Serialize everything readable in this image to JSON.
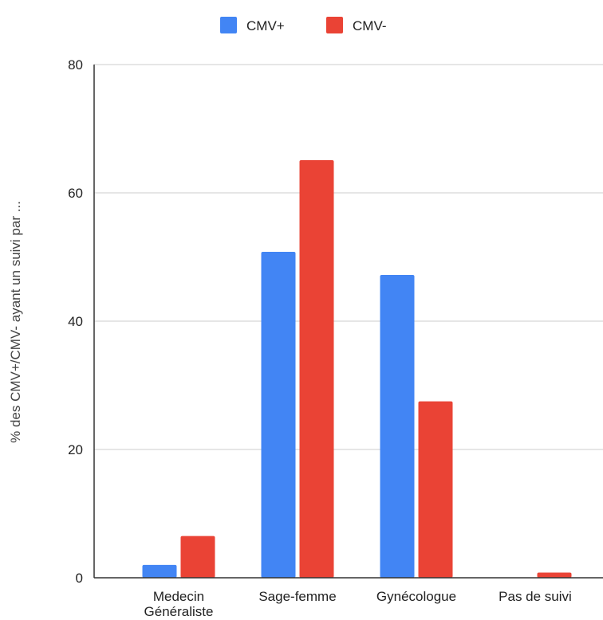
{
  "chart_data": {
    "type": "bar",
    "title": "",
    "xlabel": "",
    "ylabel": "% des CMV+/CMV- ayant un suivi par ...",
    "ylim": [
      0,
      80
    ],
    "yticks": [
      0,
      20,
      40,
      60,
      80
    ],
    "grid": true,
    "legend_position": "top-center",
    "categories": [
      [
        "Medecin",
        "Généraliste"
      ],
      [
        "Sage-femme"
      ],
      [
        "Gynécologue"
      ],
      [
        "Pas de suivi"
      ]
    ],
    "series": [
      {
        "name": "CMV+",
        "color": "#4285f4",
        "values": [
          2.0,
          50.8,
          47.2,
          0
        ]
      },
      {
        "name": "CMV-",
        "color": "#ea4335",
        "values": [
          6.5,
          65.1,
          27.5,
          0.8
        ]
      }
    ]
  },
  "colors": {
    "gridline": "#cccccc",
    "axis": "#333333",
    "text": "#222222"
  }
}
